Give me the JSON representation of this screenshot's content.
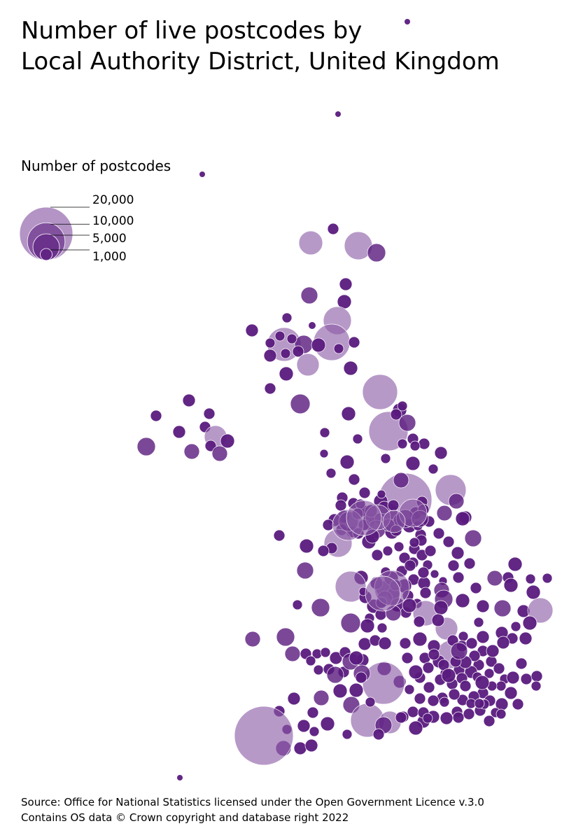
{
  "title_lines": [
    "Number of live postcodes by",
    "Local Authority District, United Kingdom"
  ],
  "legend": {
    "title": "Number of postcodes",
    "entries": [
      {
        "value": 20000,
        "label": "20,000"
      },
      {
        "value": 10000,
        "label": "10,000"
      },
      {
        "value": 5000,
        "label": "5,000"
      },
      {
        "value": 1000,
        "label": "1,000"
      }
    ]
  },
  "colors": {
    "bubble_fill": "#8a5aa6",
    "bubble_fill_small": "#5a1a7e",
    "bubble_stroke": "#ffffff",
    "leader_line": "#000000"
  },
  "source_lines": [
    "Source: Office for National Statistics licensed under the Open Government Licence v.3.0",
    "Contains OS data © Crown copyright and database right 2022"
  ]
}
